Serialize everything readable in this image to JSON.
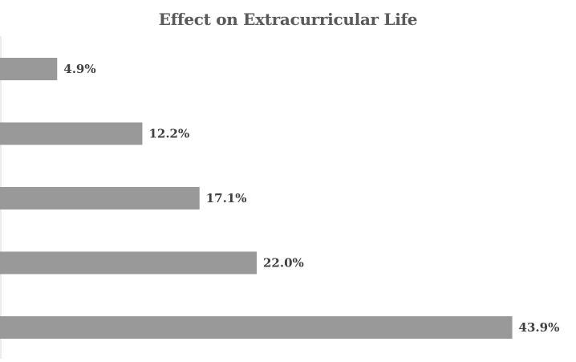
{
  "chart_data": {
    "type": "bar",
    "orientation": "horizontal",
    "title": "Effect on Extracurricular Life",
    "categories": [
      "",
      "",
      "",
      "",
      ""
    ],
    "values": [
      4.9,
      12.2,
      17.1,
      22.0,
      43.9
    ],
    "data_labels": [
      "4.9%",
      "12.2%",
      "17.1%",
      "22.0%",
      "43.9%"
    ],
    "xlim": [
      0,
      44
    ],
    "grid": false,
    "legend": "none",
    "colors": {
      "bar": "#999999",
      "axis": "#d9d9d9",
      "title": "#595959",
      "label": "#404040"
    }
  }
}
